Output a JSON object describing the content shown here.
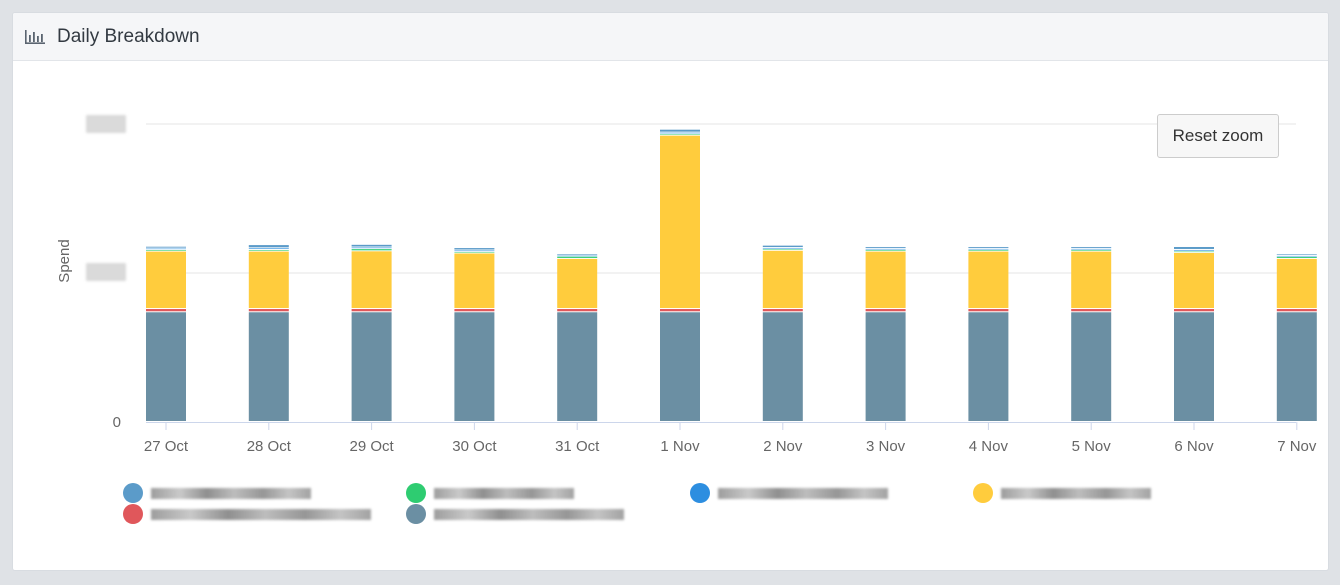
{
  "header": {
    "title": "Daily Breakdown",
    "icon": "bar-chart-icon"
  },
  "reset_zoom_label": "Reset zoom",
  "chart_data": {
    "type": "bar",
    "stacked": true,
    "title": "",
    "xlabel": "",
    "ylabel": "Spend",
    "y_tick_labels": [
      "0",
      "",
      ""
    ],
    "grid": true,
    "legend_position": "bottom",
    "categories": [
      "27 Oct",
      "28 Oct",
      "29 Oct",
      "30 Oct",
      "31 Oct",
      "1 Nov",
      "2 Nov",
      "3 Nov",
      "4 Nov",
      "5 Nov",
      "6 Nov",
      "7 Nov"
    ],
    "ylim": [
      0,
      1100
    ],
    "series": [
      {
        "color": "#6b8fa3",
        "values": [
          405,
          405,
          405,
          405,
          405,
          405,
          405,
          405,
          405,
          405,
          405,
          405
        ]
      },
      {
        "color": "#e0575b",
        "values": [
          12,
          12,
          12,
          12,
          12,
          12,
          12,
          12,
          12,
          12,
          12,
          12
        ]
      },
      {
        "color": "#ffcc3d",
        "values": [
          212,
          212,
          213,
          205,
          185,
          640,
          215,
          212,
          212,
          212,
          207,
          185
        ]
      },
      {
        "color": "#2ecc71",
        "values": [
          6,
          6,
          8,
          5,
          8,
          5,
          5,
          6,
          6,
          6,
          5,
          7
        ]
      },
      {
        "color": "#2d8ee0",
        "values": [
          5,
          6,
          6,
          6,
          4,
          6,
          5,
          4,
          4,
          4,
          6,
          4
        ]
      },
      {
        "color": "#5b9bc9",
        "values": [
          7,
          12,
          10,
          9,
          6,
          11,
          9,
          7,
          7,
          7,
          11,
          6
        ]
      }
    ],
    "legend": [
      {
        "color": "#5b9bc9",
        "label": ""
      },
      {
        "color": "#2ecc71",
        "label": ""
      },
      {
        "color": "#2d8ee0",
        "label": ""
      },
      {
        "color": "#ffcc3d",
        "label": ""
      },
      {
        "color": "#e0575b",
        "label": ""
      },
      {
        "color": "#6b8fa3",
        "label": ""
      }
    ]
  }
}
